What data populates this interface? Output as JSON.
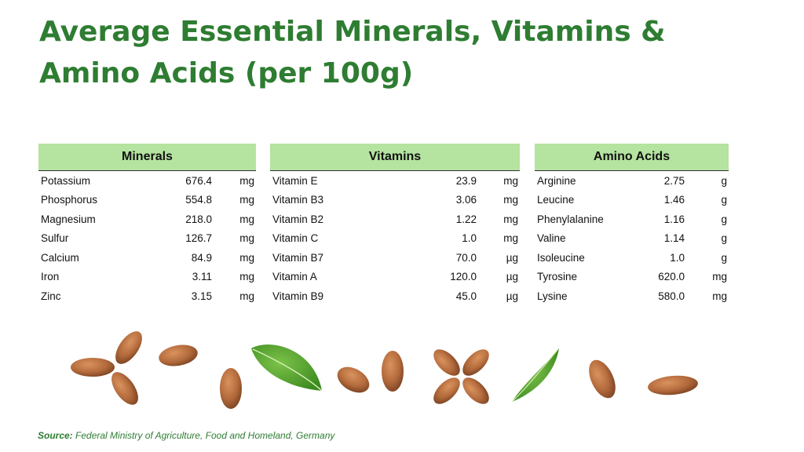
{
  "title": "Average Essential Minerals, Vitamins & Amino Acids (per 100g)",
  "tables": [
    {
      "header": "Minerals",
      "rows": [
        {
          "name": "Potassium",
          "value": "676.4",
          "unit": "mg"
        },
        {
          "name": "Phosphorus",
          "value": "554.8",
          "unit": "mg"
        },
        {
          "name": "Magnesium",
          "value": "218.0",
          "unit": "mg"
        },
        {
          "name": "Sulfur",
          "value": "126.7",
          "unit": "mg"
        },
        {
          "name": "Calcium",
          "value": "84.9",
          "unit": "mg"
        },
        {
          "name": "Iron",
          "value": "3.11",
          "unit": "mg"
        },
        {
          "name": "Zinc",
          "value": "3.15",
          "unit": "mg"
        }
      ]
    },
    {
      "header": "Vitamins",
      "rows": [
        {
          "name": "Vitamin E",
          "value": "23.9",
          "unit": "mg"
        },
        {
          "name": "Vitamin B3",
          "value": "3.06",
          "unit": "mg"
        },
        {
          "name": "Vitamin B2",
          "value": "1.22",
          "unit": "mg"
        },
        {
          "name": "Vitamin C",
          "value": "1.0",
          "unit": "mg"
        },
        {
          "name": "Vitamin B7",
          "value": "70.0",
          "unit": "µg"
        },
        {
          "name": "Vitamin A",
          "value": "120.0",
          "unit": "µg"
        },
        {
          "name": "Vitamin B9",
          "value": "45.0",
          "unit": "µg"
        }
      ]
    },
    {
      "header": "Amino Acids",
      "rows": [
        {
          "name": "Arginine",
          "value": "2.75",
          "unit": "g"
        },
        {
          "name": "Leucine",
          "value": "1.46",
          "unit": "g"
        },
        {
          "name": "Phenylalanine",
          "value": "1.16",
          "unit": "g"
        },
        {
          "name": "Valine",
          "value": "1.14",
          "unit": "g"
        },
        {
          "name": "Isoleucine",
          "value": "1.0",
          "unit": "g"
        },
        {
          "name": "Tyrosine",
          "value": "620.0",
          "unit": "mg"
        },
        {
          "name": "Lysine",
          "value": "580.0",
          "unit": "mg"
        }
      ]
    }
  ],
  "source": {
    "label": "Source:",
    "text": "Federal Ministry of Agriculture, Food and Homeland, Germany"
  },
  "decoration": {
    "items": [
      "almond-icon",
      "leaf-icon"
    ],
    "colors": {
      "almond": "#b36a3c",
      "leaf": "#4a9a2a",
      "header_bg": "#b5e3a0",
      "title": "#2e7d32"
    }
  }
}
